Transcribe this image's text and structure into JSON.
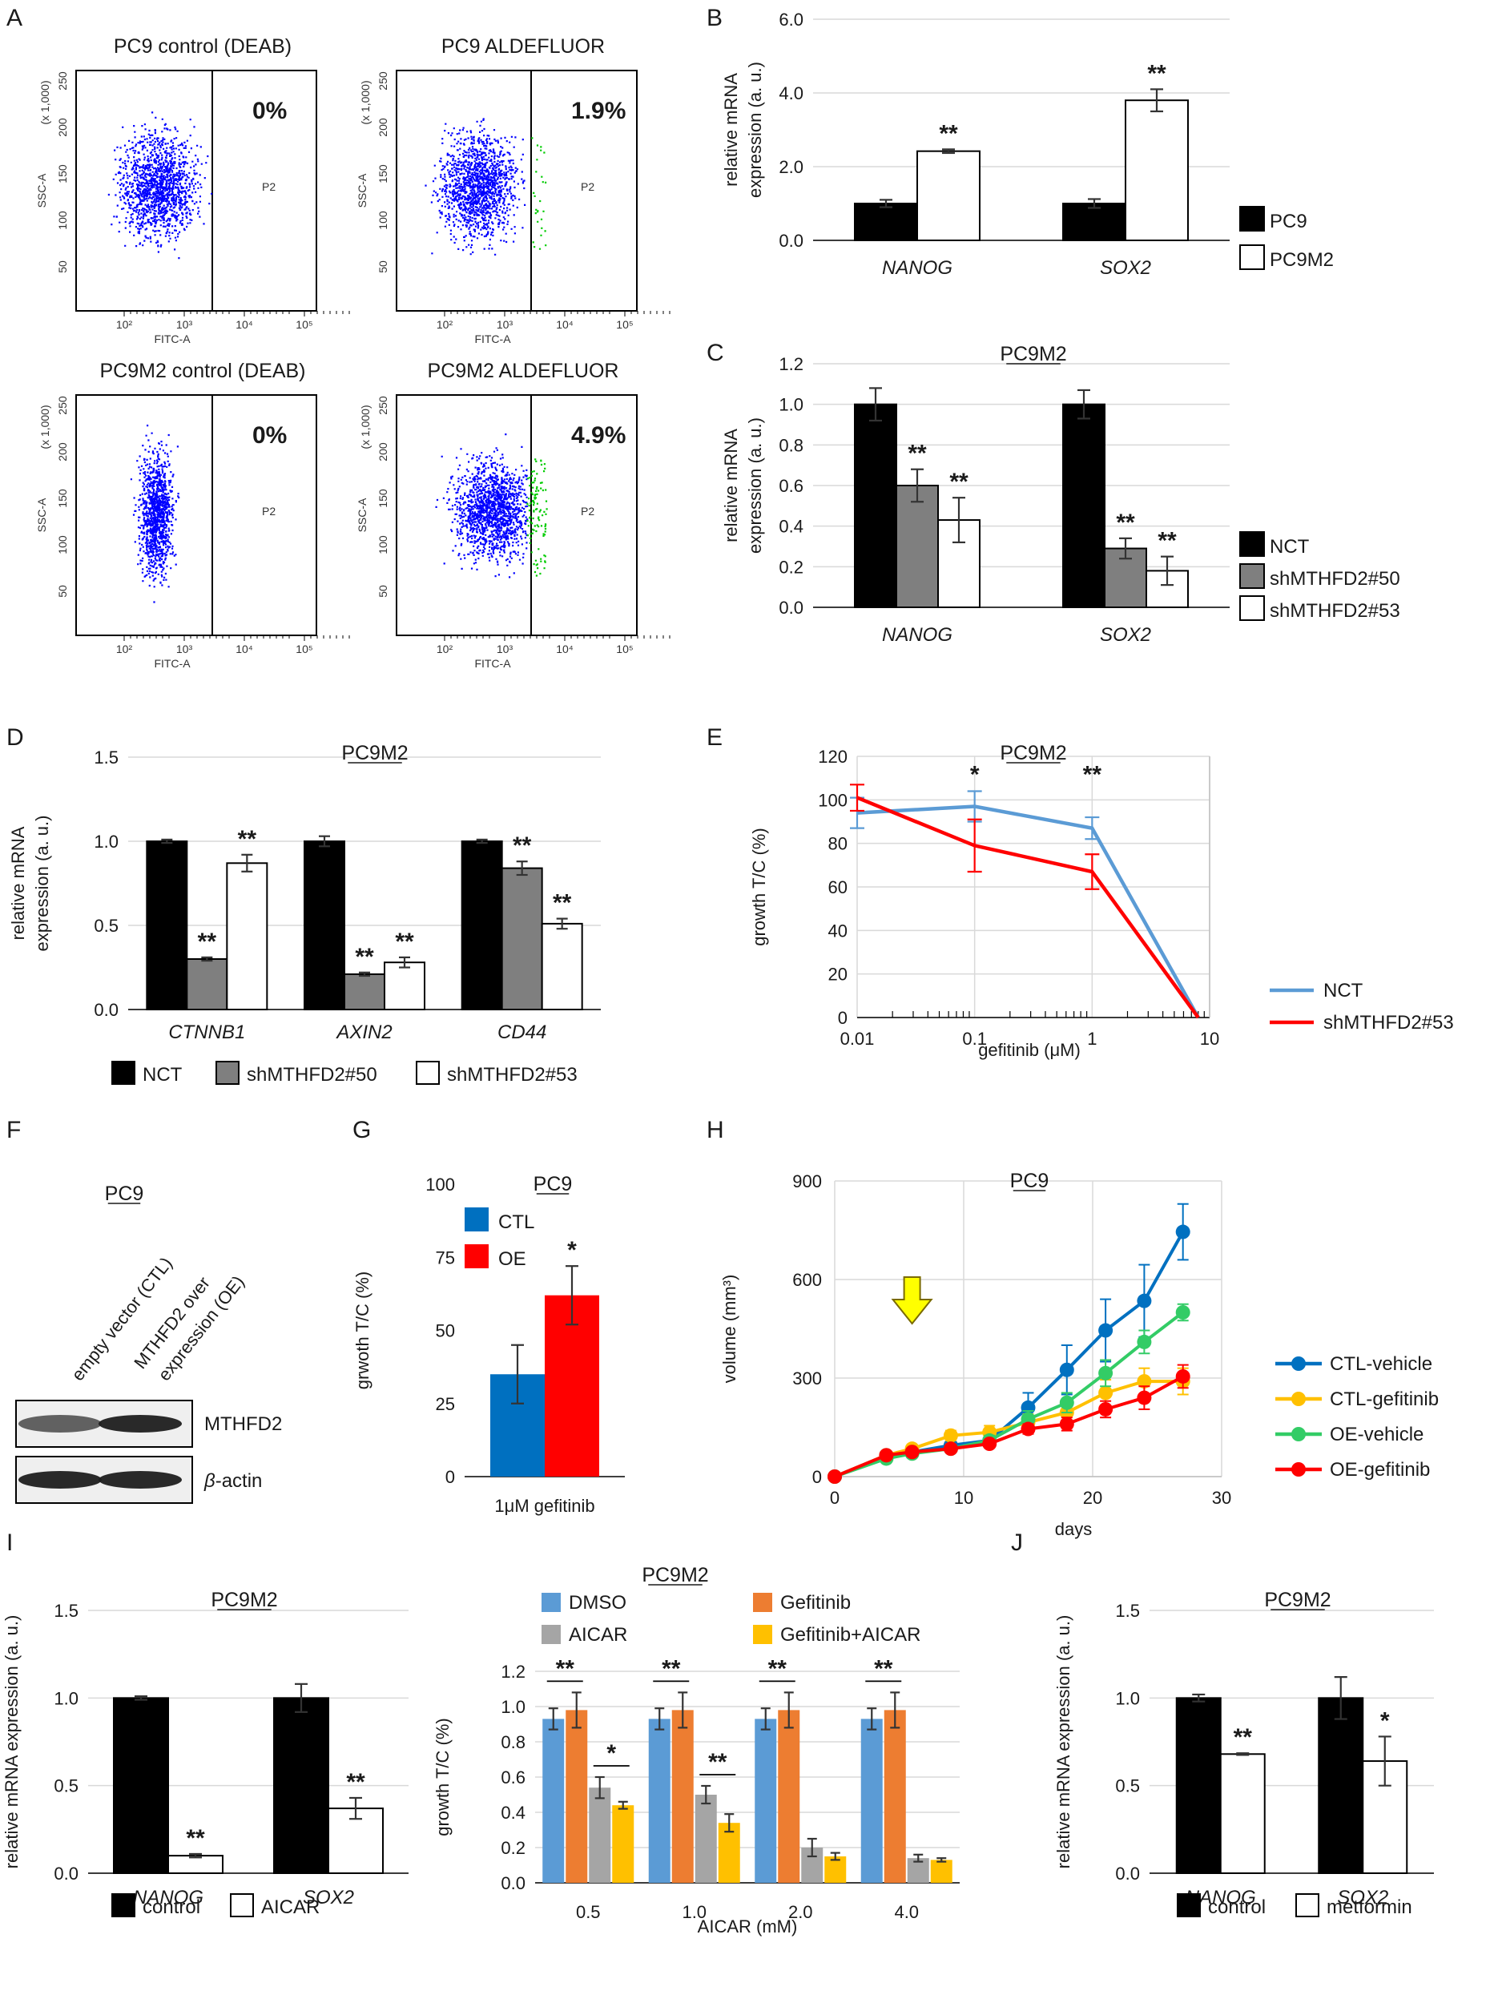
{
  "colors": {
    "black": "#000000",
    "gray": "#7f7f7f",
    "white": "#ffffff",
    "blue": "#2e75b6",
    "red": "#ff0000",
    "light_blue": "#5b9bd5",
    "orange": "#ed7d31",
    "light_gray": "#a5a5a5",
    "yellow": "#ffc000",
    "green": "#33cc66",
    "dot_blue": "#0000ff",
    "dot_green": "#00cc00"
  },
  "panels": {
    "A": {
      "label": "A",
      "plots": [
        {
          "title": "PC9  control (DEAB)",
          "percent": "0%",
          "percent_color": "#000000",
          "gate": "P2",
          "xlabel": "FITC-A",
          "ylabel": "SSC-A",
          "yunit": "(x 1,000)",
          "green_pct": 0
        },
        {
          "title": "PC9  ALDEFLUOR",
          "percent": "1.9%",
          "percent_color": "#ff0000",
          "gate": "P2",
          "xlabel": "FITC-A",
          "ylabel": "SSC-A",
          "yunit": "(x 1,000)",
          "green_pct": 1.9
        },
        {
          "title": "PC9M2  control (DEAB)",
          "percent": "0%",
          "percent_color": "#000000",
          "gate": "P2",
          "xlabel": "FITC-A",
          "ylabel": "SSC-A",
          "yunit": "(x 1,000)",
          "green_pct": 0
        },
        {
          "title": "PC9M2  ALDEFLUOR",
          "percent": "4.9%",
          "percent_color": "#ff0000",
          "gate": "P2",
          "xlabel": "FITC-A",
          "ylabel": "SSC-A",
          "yunit": "(x 1,000)",
          "green_pct": 4.9
        }
      ],
      "yticks": [
        "50",
        "100",
        "150",
        "200",
        "250"
      ],
      "xticks": [
        "10²",
        "10³",
        "10⁴",
        "10⁵"
      ]
    },
    "F": {
      "label": "F",
      "title": "PC9",
      "lanes": [
        "empty vector (CTL)",
        "MTHFD2 over expression (OE)"
      ],
      "lane1_line1": "empty vector (CTL)",
      "lane2_line1": "MTHFD2 over",
      "lane2_line2": "expression (OE)",
      "bands": [
        "MTHFD2",
        "β-actin"
      ],
      "band_prefix": "β",
      "band_suffix": "-actin",
      "band_intensity": [
        [
          0.55,
          1.0
        ],
        [
          1.0,
          1.0
        ]
      ]
    }
  },
  "chart_data": [
    {
      "panel": "B",
      "type": "bar",
      "title": "",
      "categories": [
        "NANOG",
        "SOX2"
      ],
      "series": [
        {
          "name": "PC9",
          "color": "#000000",
          "values": [
            1.0,
            1.0
          ],
          "errors": [
            0.1,
            0.12
          ]
        },
        {
          "name": "PC9M2",
          "color": "#ffffff",
          "values": [
            2.42,
            3.8
          ],
          "errors": [
            0.05,
            0.3
          ]
        }
      ],
      "significance": [
        [
          "",
          "**"
        ],
        [
          "",
          "**"
        ]
      ],
      "ylabel": "relative mRNA expression (a. u.)",
      "ylim": [
        0,
        6
      ],
      "yticks": [
        "0.0",
        "2.0",
        "4.0",
        "6.0"
      ]
    },
    {
      "panel": "C",
      "type": "bar",
      "title": "PC9M2",
      "categories": [
        "NANOG",
        "SOX2"
      ],
      "series": [
        {
          "name": "NCT",
          "color": "#000000",
          "values": [
            1.0,
            1.0
          ],
          "errors": [
            0.08,
            0.07
          ]
        },
        {
          "name": "shMTHFD2#50",
          "color": "#7f7f7f",
          "values": [
            0.6,
            0.29
          ],
          "errors": [
            0.08,
            0.05
          ]
        },
        {
          "name": "shMTHFD2#53",
          "color": "#ffffff",
          "values": [
            0.43,
            0.18
          ],
          "errors": [
            0.11,
            0.07
          ]
        }
      ],
      "significance": [
        [
          "",
          "**",
          "**"
        ],
        [
          "",
          "**",
          "**"
        ]
      ],
      "ylabel": "relative mRNA expression (a. u.)",
      "ylim": [
        0,
        1.2
      ],
      "yticks": [
        "0.0",
        "0.2",
        "0.4",
        "0.6",
        "0.8",
        "1.0",
        "1.2"
      ]
    },
    {
      "panel": "D",
      "type": "bar",
      "title": "PC9M2",
      "categories": [
        "CTNNB1",
        "AXIN2",
        "CD44"
      ],
      "series": [
        {
          "name": "NCT",
          "color": "#000000",
          "values": [
            1.0,
            1.0,
            1.0
          ],
          "errors": [
            0.01,
            0.03,
            0.01
          ]
        },
        {
          "name": "shMTHFD2#50",
          "color": "#7f7f7f",
          "values": [
            0.3,
            0.21,
            0.84
          ],
          "errors": [
            0.01,
            0.01,
            0.04
          ]
        },
        {
          "name": "shMTHFD2#53",
          "color": "#ffffff",
          "values": [
            0.87,
            0.28,
            0.51
          ],
          "errors": [
            0.05,
            0.03,
            0.03
          ]
        }
      ],
      "significance": [
        [
          "",
          "**",
          "**"
        ],
        [
          "",
          "**",
          "**"
        ],
        [
          "",
          "**",
          "**"
        ]
      ],
      "ylabel": "relative mRNA expression (a. u.)",
      "ylim": [
        0,
        1.5
      ],
      "yticks": [
        "0.0",
        "0.5",
        "1.0",
        "1.5"
      ]
    },
    {
      "panel": "E",
      "type": "line",
      "title": "PC9M2",
      "x": [
        0.01,
        0.1,
        1,
        8
      ],
      "series": [
        {
          "name": "NCT",
          "color": "#5b9bd5",
          "values": [
            94,
            97,
            87,
            0
          ],
          "errors": [
            7,
            7,
            5,
            0
          ]
        },
        {
          "name": "shMTHFD2#53",
          "color": "#ff0000",
          "values": [
            101,
            79,
            67,
            0
          ],
          "errors": [
            6,
            12,
            8,
            0
          ]
        }
      ],
      "significance_at": {
        "0.1": "*",
        "1": "**"
      },
      "xlabel": "gefitinib (μM)",
      "ylabel": "growth T/C (%)",
      "xscale": "log",
      "xlim": [
        0.01,
        10
      ],
      "ylim": [
        0,
        120
      ],
      "xticks": [
        "0.01",
        "0.1",
        "1",
        "10"
      ],
      "yticks": [
        "0",
        "20",
        "40",
        "60",
        "80",
        "100",
        "120"
      ]
    },
    {
      "panel": "G",
      "type": "bar",
      "title": "PC9",
      "categories": [
        "1μM gefitinib"
      ],
      "series": [
        {
          "name": "CTL",
          "color": "#0070c0",
          "values": [
            35
          ],
          "errors": [
            10
          ]
        },
        {
          "name": "OE",
          "color": "#ff0000",
          "values": [
            62
          ],
          "errors": [
            10
          ]
        }
      ],
      "significance": [
        [
          "",
          "*"
        ]
      ],
      "ylabel": "grwoth T/C (%)",
      "ylim": [
        0,
        100
      ],
      "yticks": [
        "0",
        "25",
        "50",
        "75",
        "100"
      ]
    },
    {
      "panel": "H",
      "type": "line",
      "title": "PC9",
      "x": [
        0,
        4,
        6,
        9,
        12,
        15,
        18,
        21,
        24,
        27
      ],
      "series": [
        {
          "name": "CTL-vehicle",
          "color": "#0070c0",
          "values": [
            0,
            65,
            75,
            95,
            110,
            210,
            325,
            445,
            535,
            745
          ],
          "errors": [
            0,
            5,
            5,
            10,
            15,
            45,
            75,
            95,
            110,
            85
          ]
        },
        {
          "name": "CTL-gefitinib",
          "color": "#ffc000",
          "values": [
            0,
            65,
            85,
            125,
            135,
            165,
            195,
            255,
            290,
            290
          ],
          "errors": [
            0,
            5,
            10,
            15,
            20,
            25,
            35,
            40,
            40,
            40
          ]
        },
        {
          "name": "OE-vehicle",
          "color": "#33cc66",
          "values": [
            0,
            55,
            70,
            85,
            110,
            175,
            225,
            315,
            410,
            500
          ],
          "errors": [
            0,
            5,
            5,
            10,
            15,
            25,
            30,
            40,
            35,
            25
          ]
        },
        {
          "name": "OE-gefitinib",
          "color": "#ff0000",
          "values": [
            0,
            65,
            75,
            85,
            100,
            145,
            160,
            205,
            240,
            305
          ],
          "errors": [
            0,
            5,
            5,
            10,
            10,
            15,
            20,
            25,
            35,
            35
          ]
        }
      ],
      "arrow_at_day": 6,
      "xlabel": "days",
      "ylabel": "volume (mm³)",
      "xlim": [
        0,
        30
      ],
      "ylim": [
        0,
        900
      ],
      "xticks": [
        "0",
        "10",
        "20",
        "30"
      ],
      "yticks": [
        "0",
        "300",
        "600",
        "900"
      ]
    },
    {
      "panel": "I",
      "type": "bar",
      "title": "PC9M2",
      "categories": [
        "NANOG",
        "SOX2"
      ],
      "series": [
        {
          "name": "control",
          "color": "#000000",
          "values": [
            1.0,
            1.0
          ],
          "errors": [
            0.01,
            0.08
          ]
        },
        {
          "name": "AICAR",
          "color": "#ffffff",
          "values": [
            0.1,
            0.37
          ],
          "errors": [
            0.01,
            0.06
          ]
        }
      ],
      "significance": [
        [
          "",
          "**"
        ],
        [
          "",
          "**"
        ]
      ],
      "ylabel": "relative mRNA expression (a. u.)",
      "ylim": [
        0,
        1.5
      ],
      "yticks": [
        "0.0",
        "0.5",
        "1.0",
        "1.5"
      ]
    },
    {
      "panel": "I-right",
      "type": "bar",
      "title": "PC9M2",
      "categories": [
        "0.5",
        "1.0",
        "2.0",
        "4.0"
      ],
      "series": [
        {
          "name": "DMSO",
          "color": "#5b9bd5",
          "values": [
            0.93,
            0.93,
            0.93,
            0.93
          ],
          "errors": [
            0.06,
            0.06,
            0.06,
            0.06
          ]
        },
        {
          "name": "Gefitinib",
          "color": "#ed7d31",
          "values": [
            0.98,
            0.98,
            0.98,
            0.98
          ],
          "errors": [
            0.1,
            0.1,
            0.1,
            0.1
          ]
        },
        {
          "name": "AICAR",
          "color": "#a5a5a5",
          "values": [
            0.54,
            0.5,
            0.2,
            0.14
          ],
          "errors": [
            0.06,
            0.05,
            0.05,
            0.02
          ]
        },
        {
          "name": "Gefitinib+AICAR",
          "color": "#ffc000",
          "values": [
            0.44,
            0.34,
            0.15,
            0.13
          ],
          "errors": [
            0.02,
            0.05,
            0.02,
            0.01
          ]
        }
      ],
      "brackets": [
        {
          "group": 0,
          "from": 0,
          "to": 1,
          "label": "**"
        },
        {
          "group": 0,
          "from": 2,
          "to": 3,
          "label": "*"
        },
        {
          "group": 1,
          "from": 0,
          "to": 1,
          "label": "**"
        },
        {
          "group": 1,
          "from": 2,
          "to": 3,
          "label": "**"
        },
        {
          "group": 2,
          "from": 0,
          "to": 1,
          "label": "**"
        },
        {
          "group": 3,
          "from": 0,
          "to": 1,
          "label": "**"
        }
      ],
      "xlabel": "AICAR (mM)",
      "ylabel": "growth T/C (%)",
      "ylim": [
        0,
        1.2
      ],
      "yticks": [
        "0.0",
        "0.2",
        "0.4",
        "0.6",
        "0.8",
        "1.0",
        "1.2"
      ]
    },
    {
      "panel": "J",
      "type": "bar",
      "title": "PC9M2",
      "categories": [
        "NANOG",
        "SOX2"
      ],
      "series": [
        {
          "name": "control",
          "color": "#000000",
          "values": [
            1.0,
            1.0
          ],
          "errors": [
            0.02,
            0.12
          ]
        },
        {
          "name": "metformin",
          "color": "#ffffff",
          "values": [
            0.68,
            0.64
          ],
          "errors": [
            0.005,
            0.14
          ]
        }
      ],
      "significance": [
        [
          "",
          "**"
        ],
        [
          "",
          "*"
        ]
      ],
      "ylabel": "relative mRNA expression (a. u.)",
      "ylim": [
        0,
        1.5
      ],
      "yticks": [
        "0.0",
        "0.5",
        "1.0",
        "1.5"
      ]
    }
  ]
}
